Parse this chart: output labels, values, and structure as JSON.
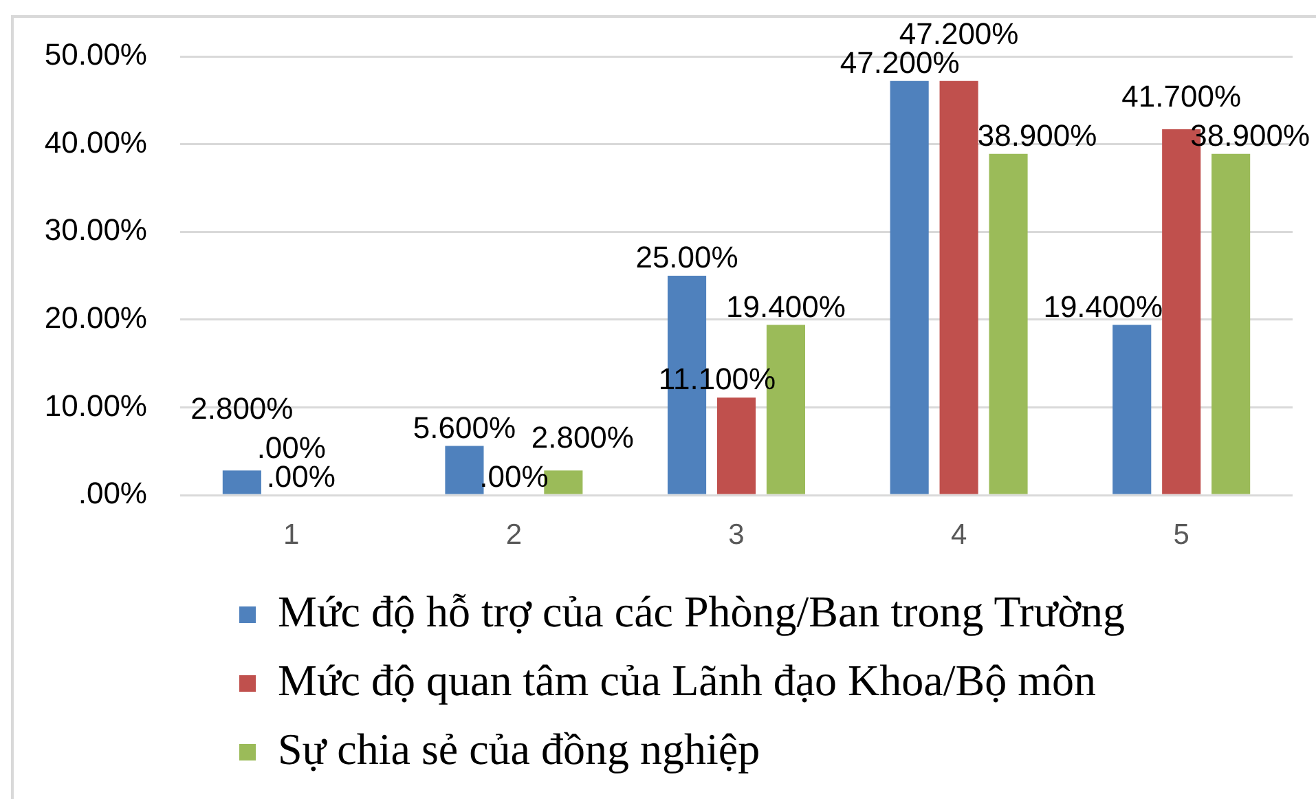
{
  "chart_data": {
    "type": "bar",
    "categories": [
      "1",
      "2",
      "3",
      "4",
      "5"
    ],
    "series": [
      {
        "name": "Mức độ hỗ trợ của các Phòng/Ban trong Trường",
        "color": "#4f81bd",
        "values": [
          2.8,
          5.6,
          25,
          47.2,
          19.4
        ],
        "value_labels": [
          "2.800%",
          "5.600%",
          "25.00%",
          "47.200%",
          "19.400%"
        ]
      },
      {
        "name": "Mức độ quan tâm của Lãnh đạo Khoa/Bộ môn",
        "color": "#c0504d",
        "values": [
          0,
          0,
          11.1,
          47.2,
          41.7
        ],
        "value_labels": [
          ".00%",
          ".00%",
          "11.100%",
          "47.200%",
          "41.700%"
        ]
      },
      {
        "name": "Sự chia sẻ của đồng nghiệp",
        "color": "#9bbb59",
        "values": [
          0,
          2.8,
          19.4,
          38.9,
          38.9
        ],
        "value_labels": [
          ".00%",
          "2.800%",
          "19.400%",
          "38.900%",
          "38.900%"
        ]
      }
    ],
    "ylim": [
      0,
      50
    ],
    "yticks": [
      {
        "value": 0,
        "label": ".00%"
      },
      {
        "value": 10,
        "label": "10.00%"
      },
      {
        "value": 20,
        "label": "20.00%"
      },
      {
        "value": 30,
        "label": "30.00%"
      },
      {
        "value": 40,
        "label": "40.00%"
      },
      {
        "value": 50,
        "label": "50.00%"
      }
    ],
    "grid": "y",
    "legend": "bottom"
  }
}
